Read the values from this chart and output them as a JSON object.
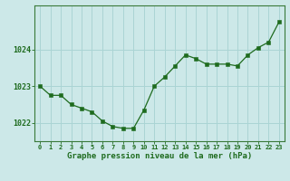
{
  "x": [
    0,
    1,
    2,
    3,
    4,
    5,
    6,
    7,
    8,
    9,
    10,
    11,
    12,
    13,
    14,
    15,
    16,
    17,
    18,
    19,
    20,
    21,
    22,
    23
  ],
  "y": [
    1023.0,
    1022.75,
    1022.75,
    1022.5,
    1022.4,
    1022.3,
    1022.05,
    1021.9,
    1021.85,
    1021.85,
    1022.35,
    1023.0,
    1023.25,
    1023.55,
    1023.85,
    1023.75,
    1023.6,
    1023.6,
    1023.6,
    1023.55,
    1023.85,
    1024.05,
    1024.2,
    1024.75
  ],
  "line_color": "#1e6b1e",
  "marker_color": "#1e6b1e",
  "bg_color": "#cce8e8",
  "grid_color": "#aad4d4",
  "axis_label_color": "#1e6b1e",
  "tick_label_color": "#1e6b1e",
  "xlabel": "Graphe pression niveau de la mer (hPa)",
  "ylim": [
    1021.5,
    1025.2
  ],
  "yticks": [
    1022,
    1023,
    1024
  ],
  "spine_color": "#3a7a3a"
}
